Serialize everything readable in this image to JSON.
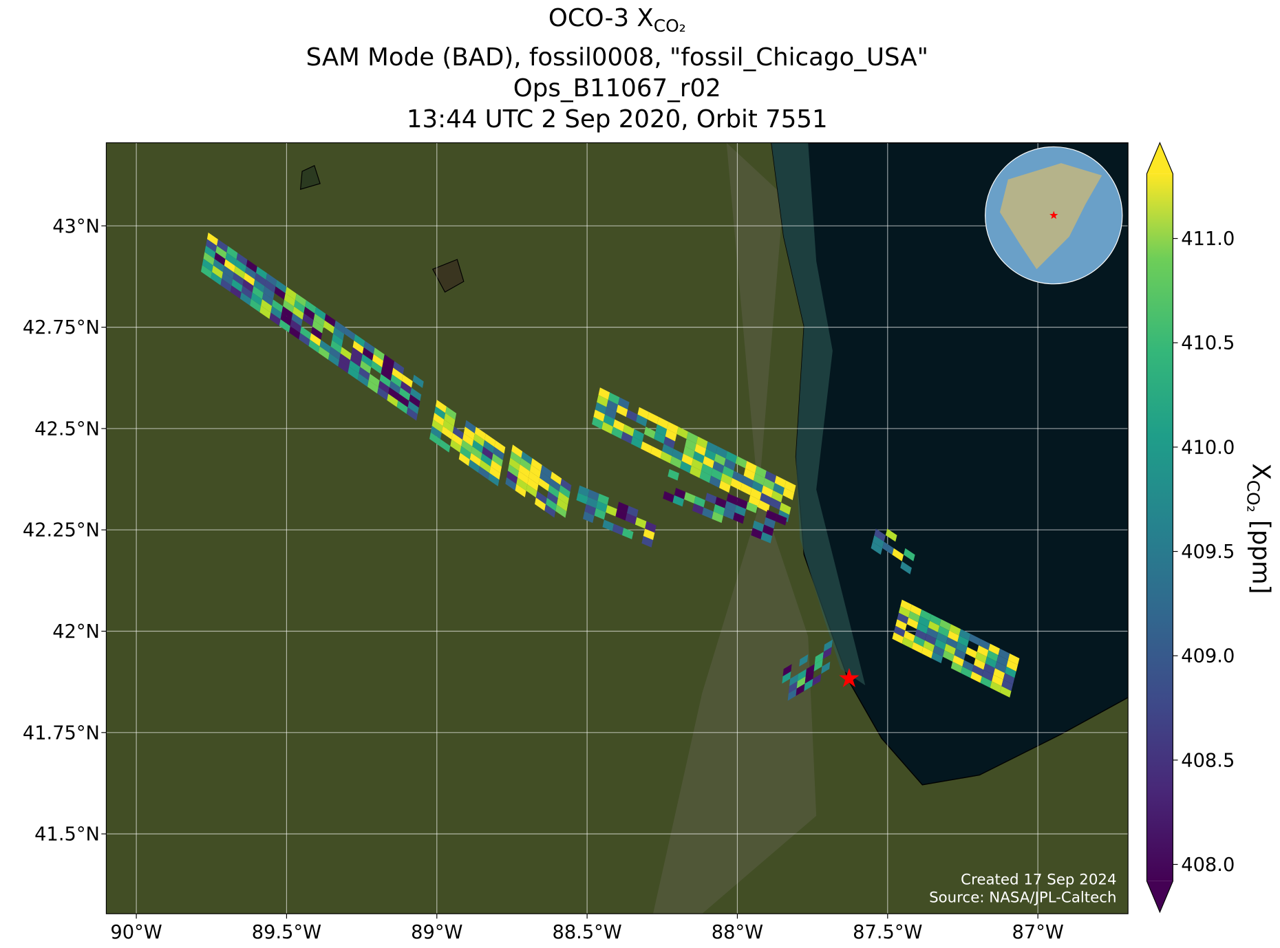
{
  "chart_data": {
    "type": "map",
    "title_main": "OCO-3 X",
    "title_subscript": "CO₂",
    "title_lines": [
      "SAM Mode (BAD), fossil0008, \"fossil_Chicago_USA\"",
      "Ops_B11067_r02",
      "13:44 UTC 2 Sep 2020, Orbit 7551"
    ],
    "xlim": [
      -90.1,
      -86.7
    ],
    "ylim": [
      41.303,
      43.205
    ],
    "xticks": [
      {
        "value": -90,
        "label": "90°W"
      },
      {
        "value": -89.5,
        "label": "89.5°W"
      },
      {
        "value": -89,
        "label": "89°W"
      },
      {
        "value": -88.5,
        "label": "88.5°W"
      },
      {
        "value": -88,
        "label": "88°W"
      },
      {
        "value": -87.5,
        "label": "87.5°W"
      },
      {
        "value": -87,
        "label": "87°W"
      }
    ],
    "yticks": [
      {
        "value": 41.5,
        "label": "41.5°N"
      },
      {
        "value": 41.75,
        "label": "41.75°N"
      },
      {
        "value": 42,
        "label": "42°N"
      },
      {
        "value": 42.25,
        "label": "42.25°N"
      },
      {
        "value": 42.5,
        "label": "42.5°N"
      },
      {
        "value": 42.75,
        "label": "42.75°N"
      },
      {
        "value": 43,
        "label": "43°N"
      }
    ],
    "grid": true,
    "target": {
      "lon": -87.628,
      "lat": 41.883,
      "color": "#ff0000"
    },
    "colorbar": {
      "label_main": "X",
      "label_subscript": "CO₂",
      "label_unit": " [ppm]",
      "clim": [
        407.92,
        411.31
      ],
      "ticks": [
        {
          "value": 408,
          "label": "408.0"
        },
        408.5,
        {
          "value": 409,
          "label": "409.0"
        },
        409.5,
        {
          "value": 410,
          "label": "410.0"
        },
        410.5,
        {
          "value": 411,
          "label": "411.0"
        }
      ]
    },
    "credits": [
      "Created 17 Sep 2024",
      "Source: NASA/JPL-Caltech"
    ]
  }
}
